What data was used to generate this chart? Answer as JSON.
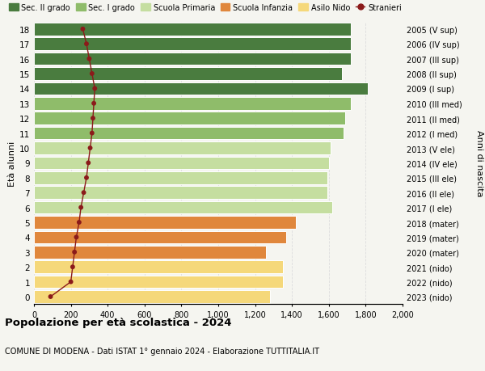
{
  "ages": [
    0,
    1,
    2,
    3,
    4,
    5,
    6,
    7,
    8,
    9,
    10,
    11,
    12,
    13,
    14,
    15,
    16,
    17,
    18
  ],
  "bar_values": [
    1280,
    1350,
    1350,
    1260,
    1370,
    1420,
    1620,
    1590,
    1590,
    1600,
    1610,
    1680,
    1690,
    1720,
    1810,
    1670,
    1720,
    1720,
    1720
  ],
  "stranieri": [
    90,
    200,
    210,
    220,
    230,
    245,
    255,
    270,
    285,
    295,
    305,
    315,
    320,
    325,
    330,
    315,
    300,
    285,
    265
  ],
  "right_labels": [
    "2023 (nido)",
    "2022 (nido)",
    "2021 (nido)",
    "2020 (mater)",
    "2019 (mater)",
    "2018 (mater)",
    "2017 (I ele)",
    "2016 (II ele)",
    "2015 (III ele)",
    "2014 (IV ele)",
    "2013 (V ele)",
    "2012 (I med)",
    "2011 (II med)",
    "2010 (III med)",
    "2009 (I sup)",
    "2008 (II sup)",
    "2007 (III sup)",
    "2006 (IV sup)",
    "2005 (V sup)"
  ],
  "age_to_color": [
    "#f5d87a",
    "#f5d87a",
    "#f5d87a",
    "#e0873c",
    "#e0873c",
    "#e0873c",
    "#c5dea0",
    "#c5dea0",
    "#c5dea0",
    "#c5dea0",
    "#c5dea0",
    "#8fbc6a",
    "#8fbc6a",
    "#8fbc6a",
    "#4a7c3f",
    "#4a7c3f",
    "#4a7c3f",
    "#4a7c3f",
    "#4a7c3f"
  ],
  "stranieri_color": "#8b1a1a",
  "background_color": "#f5f5f0",
  "grid_color": "#dddddd",
  "xlim": [
    0,
    2000
  ],
  "xticks": [
    0,
    200,
    400,
    600,
    800,
    1000,
    1200,
    1400,
    1600,
    1800,
    2000
  ],
  "xtick_labels": [
    "0",
    "200",
    "400",
    "600",
    "800",
    "1,000",
    "1,200",
    "1,400",
    "1,600",
    "1,800",
    "2,000"
  ],
  "ylabel_left": "Età alunni",
  "ylabel_right": "Anni di nascita",
  "title": "Popolazione per età scolastica - 2024",
  "subtitle": "COMUNE DI MODENA - Dati ISTAT 1° gennaio 2024 - Elaborazione TUTTITALIA.IT",
  "legend_entries": [
    {
      "label": "Sec. II grado",
      "color": "#4a7c3f",
      "type": "patch"
    },
    {
      "label": "Sec. I grado",
      "color": "#8fbc6a",
      "type": "patch"
    },
    {
      "label": "Scuola Primaria",
      "color": "#c5dea0",
      "type": "patch"
    },
    {
      "label": "Scuola Infanzia",
      "color": "#e0873c",
      "type": "patch"
    },
    {
      "label": "Asilo Nido",
      "color": "#f5d87a",
      "type": "patch"
    },
    {
      "label": "Stranieri",
      "color": "#8b1a1a",
      "type": "line"
    }
  ]
}
